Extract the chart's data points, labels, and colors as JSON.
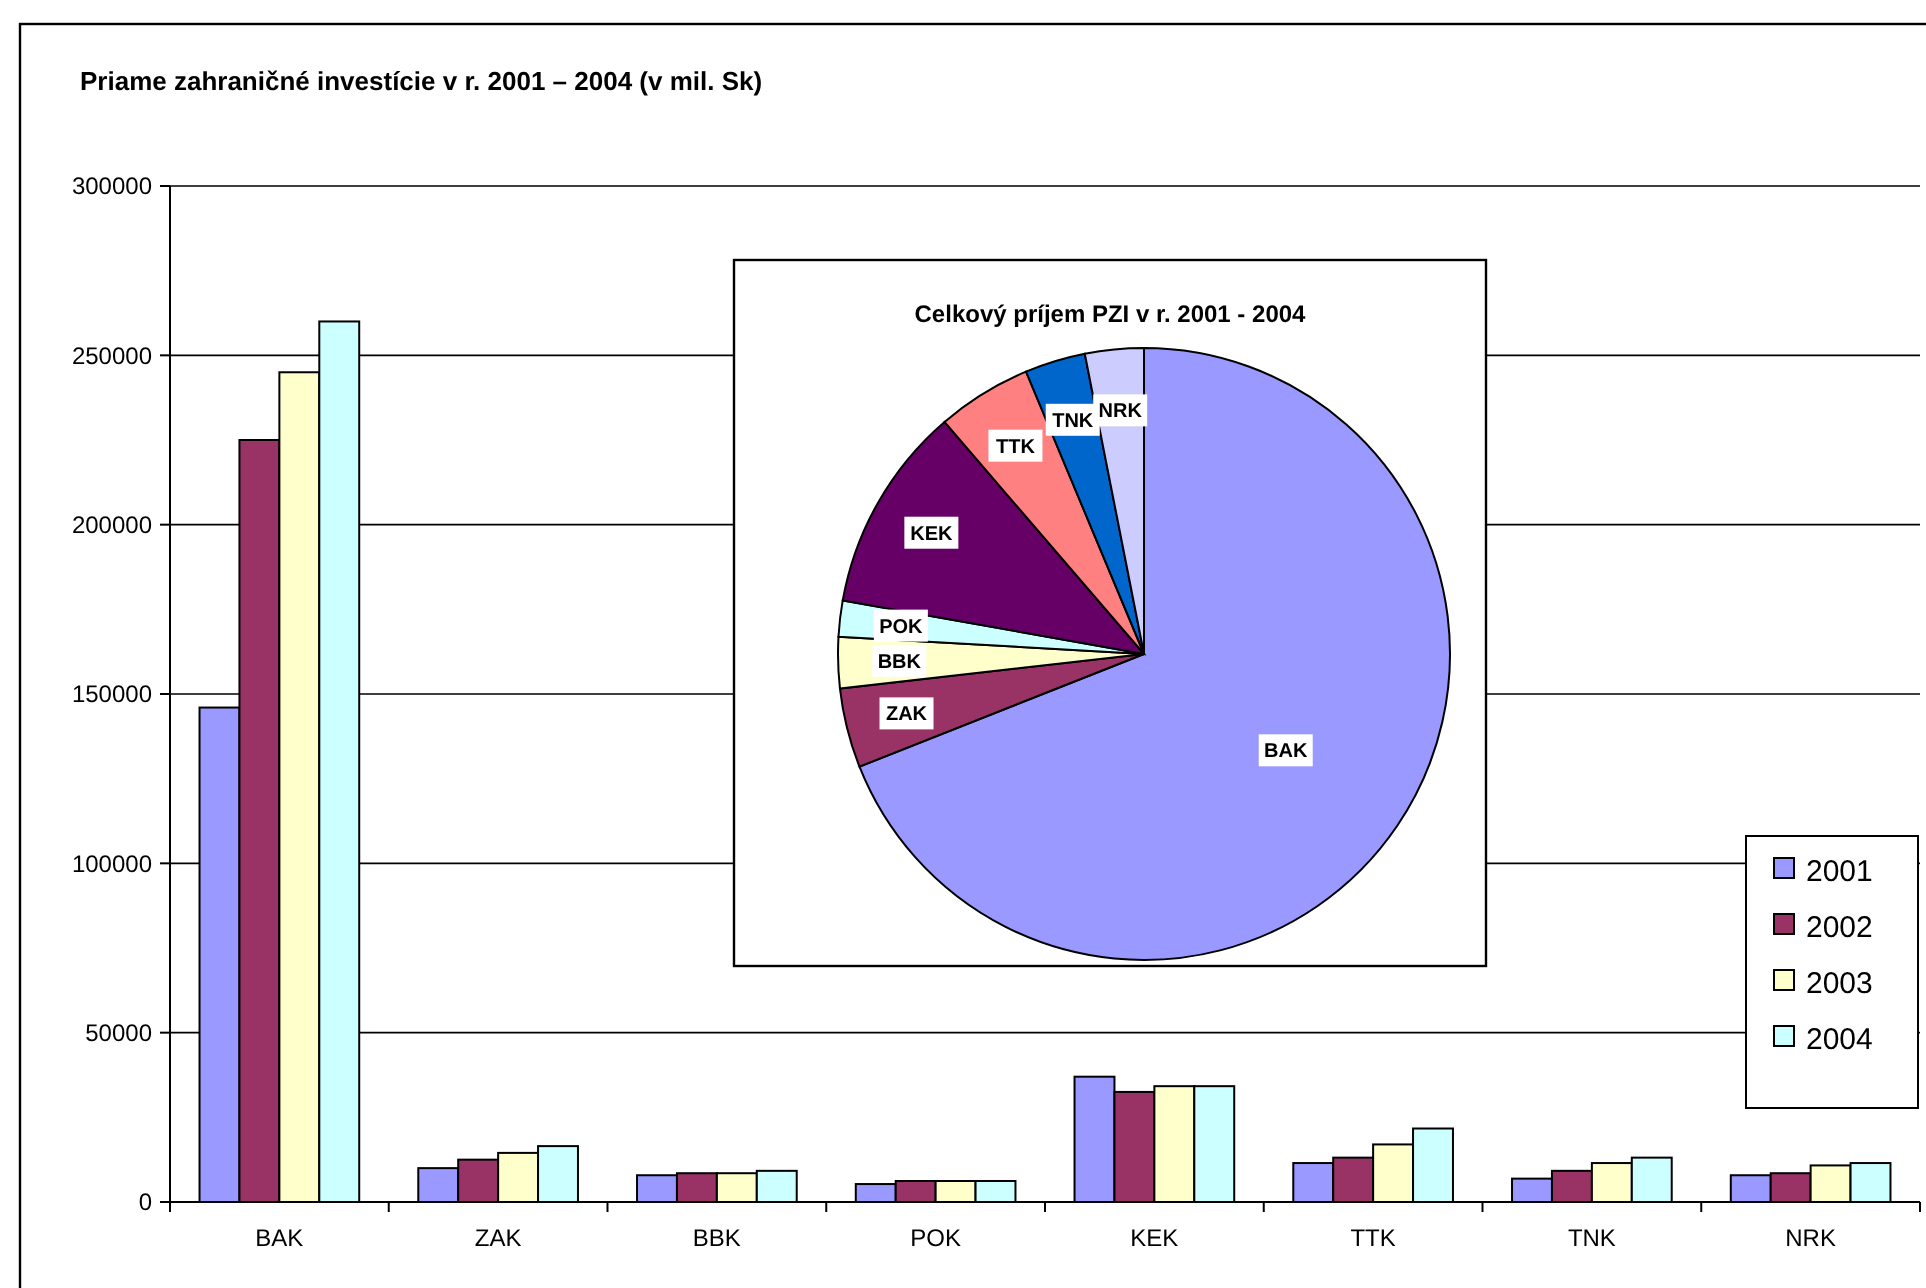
{
  "chart_data": [
    {
      "type": "bar",
      "title": "Priame zahraničné investície  v r. 2001 – 2004 (v mil. Sk)",
      "categories": [
        "BAK",
        "ZAK",
        "BBK",
        "POK",
        "KEK",
        "TTK",
        "TNK",
        "NRK"
      ],
      "series": [
        {
          "name": "2001",
          "color": "#9999ff",
          "values": [
            146000,
            10000,
            7900,
            5300,
            37000,
            11500,
            6900,
            7900
          ]
        },
        {
          "name": "2002",
          "color": "#993366",
          "values": [
            225000,
            12500,
            8500,
            6200,
            32500,
            13100,
            9200,
            8500
          ]
        },
        {
          "name": "2003",
          "color": "#ffffcc",
          "values": [
            245000,
            14500,
            8500,
            6200,
            34200,
            17000,
            11500,
            10800
          ]
        },
        {
          "name": "2004",
          "color": "#ccffff",
          "values": [
            260000,
            16500,
            9200,
            6200,
            34200,
            21700,
            13100,
            11500
          ]
        }
      ],
      "ylim": [
        0,
        300000
      ],
      "yticks": [
        0,
        50000,
        100000,
        150000,
        200000,
        250000,
        300000
      ],
      "grid": "y",
      "legend": "right"
    },
    {
      "type": "pie",
      "title": "Celkový príjem PZI v r. 2001 - 2004",
      "categories": [
        "BAK",
        "ZAK",
        "BBK",
        "POK",
        "KEK",
        "TTK",
        "TNK",
        "NRK"
      ],
      "values": [
        69.0,
        4.2,
        2.7,
        1.9,
        10.9,
        5.0,
        3.2,
        3.1
      ],
      "colors": [
        "#9999ff",
        "#993366",
        "#ffffcc",
        "#ccffff",
        "#660066",
        "#ff8080",
        "#0066cc",
        "#ccccff"
      ]
    }
  ]
}
